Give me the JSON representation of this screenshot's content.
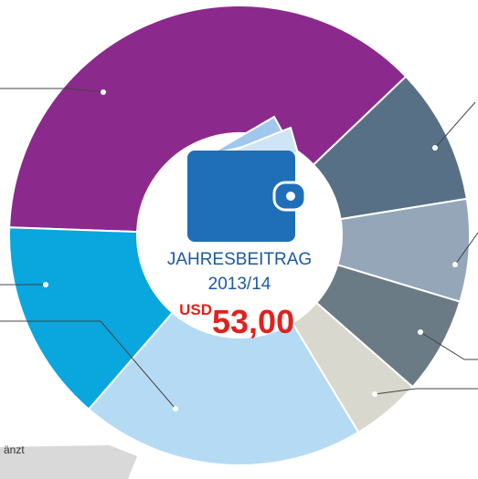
{
  "chart_data": {
    "type": "donut",
    "center_title": "JAHRESBEITRAG",
    "center_period": "2013/14",
    "currency": "USD",
    "amount": "53,00",
    "note": "änzt",
    "categories": [
      null,
      null,
      null,
      null,
      null,
      null,
      null
    ],
    "values": [
      37.3,
      9.6,
      7.2,
      6.8,
      4.9,
      20,
      14.2
    ],
    "colors": [
      "#8b2a8c",
      "#587085",
      "#94a6b8",
      "#6b7b85",
      "#d9d8cf",
      "#b5dbf4",
      "#0aa6de"
    ]
  }
}
